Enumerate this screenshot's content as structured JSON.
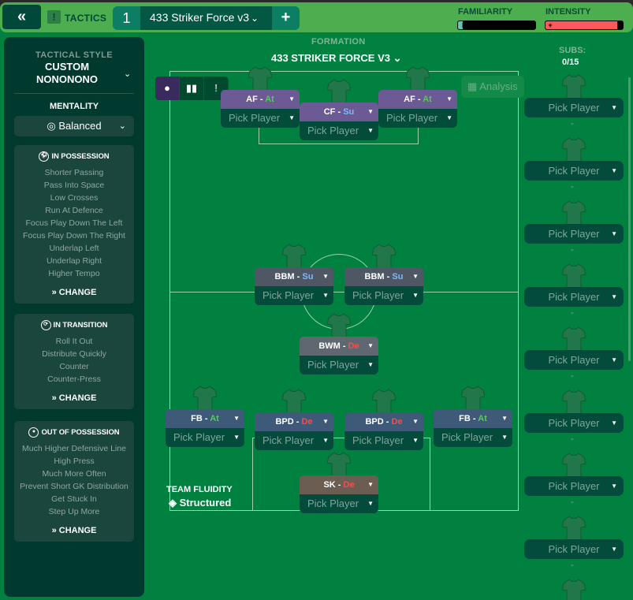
{
  "topbar": {
    "back_icon": "double-chevron-left-icon",
    "section": "TACTICS",
    "tactic_slot": "1",
    "tactic_name": "433 Striker Force v3",
    "add": "+",
    "familiarity": {
      "label": "FAMILIARITY",
      "value_pct": 6,
      "color": "#5fc9b0"
    },
    "intensity": {
      "label": "INTENSITY",
      "value_pct": 93,
      "color": "#ff5858"
    }
  },
  "sidebar": {
    "style_label": "TACTICAL STYLE",
    "style_value": "CUSTOM NONONONO",
    "mentality_label": "MENTALITY",
    "mentality_value": "Balanced",
    "sections": [
      {
        "title": "IN POSSESSION",
        "items": [
          "Shorter Passing",
          "Pass Into Space",
          "Low Crosses",
          "Run At Defence",
          "Focus Play Down The Left",
          "Focus Play Down The Right",
          "Underlap Left",
          "Underlap Right",
          "Higher Tempo"
        ],
        "change": "CHANGE"
      },
      {
        "title": "IN TRANSITION",
        "items": [
          "Roll It Out",
          "Distribute Quickly",
          "Counter",
          "Counter-Press"
        ],
        "change": "CHANGE"
      },
      {
        "title": "OUT OF POSSESSION",
        "items": [
          "Much Higher Defensive Line",
          "High Press",
          "Much More Often",
          "Prevent Short GK Distribution",
          "Get Stuck In",
          "Step Up More"
        ],
        "change": "CHANGE"
      }
    ]
  },
  "formation": {
    "label": "FORMATION",
    "value": "433 STRIKER FORCE V3"
  },
  "analysis": "Analysis",
  "team_fluidity": {
    "label": "TEAM FLUIDITY",
    "value": "Structured"
  },
  "players": [
    {
      "role": "AF",
      "duty": "At",
      "pick": "Pick Player",
      "color": "#6b5a93"
    },
    {
      "role": "CF",
      "duty": "Su",
      "pick": "Pick Player",
      "color": "#6b5a93"
    },
    {
      "role": "AF",
      "duty": "At",
      "pick": "Pick Player",
      "color": "#6b5a93"
    },
    {
      "role": "BBM",
      "duty": "Su",
      "pick": "Pick Player",
      "color": "#4f5765"
    },
    {
      "role": "BBM",
      "duty": "Su",
      "pick": "Pick Player",
      "color": "#4f5765"
    },
    {
      "role": "BWM",
      "duty": "De",
      "pick": "Pick Player",
      "color": "#5f6770"
    },
    {
      "role": "FB",
      "duty": "At",
      "pick": "Pick Player",
      "color": "#3e5a78"
    },
    {
      "role": "BPD",
      "duty": "De",
      "pick": "Pick Player",
      "color": "#3e5a78"
    },
    {
      "role": "BPD",
      "duty": "De",
      "pick": "Pick Player",
      "color": "#3e5a78"
    },
    {
      "role": "FB",
      "duty": "At",
      "pick": "Pick Player",
      "color": "#3e5a78"
    },
    {
      "role": "SK",
      "duty": "De",
      "pick": "Pick Player",
      "color": "#6b5d52"
    }
  ],
  "subs": {
    "label": "SUBS:",
    "count": "0/15",
    "slots": [
      "Pick Player",
      "Pick Player",
      "Pick Player",
      "Pick Player",
      "Pick Player",
      "Pick Player",
      "Pick Player",
      "Pick Player"
    ],
    "empty": "-"
  }
}
